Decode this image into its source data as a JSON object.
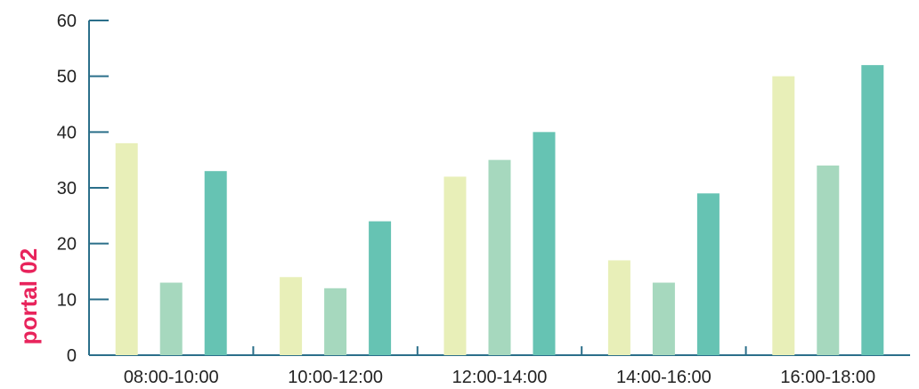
{
  "chart_data": {
    "type": "bar",
    "title": "",
    "xlabel": "",
    "ylabel": "portal 02",
    "categories": [
      "08:00-10:00",
      "10:00-12:00",
      "12:00-14:00",
      "14:00-16:00",
      "16:00-18:00"
    ],
    "series": [
      {
        "values": [
          38,
          14,
          32,
          17,
          50
        ],
        "color": "#e8efb8"
      },
      {
        "values": [
          13,
          12,
          35,
          13,
          34
        ],
        "color": "#a6d8be"
      },
      {
        "values": [
          33,
          24,
          40,
          29,
          52
        ],
        "color": "#66c3b3"
      }
    ],
    "ylim": [
      0,
      60
    ],
    "yticks": [
      0,
      10,
      20,
      30,
      40,
      50,
      60
    ],
    "grid": false,
    "legend": "none",
    "colors": {
      "axis": "#2b6f8a",
      "ylabel": "#e8245c",
      "tick_text": "#222222"
    }
  }
}
